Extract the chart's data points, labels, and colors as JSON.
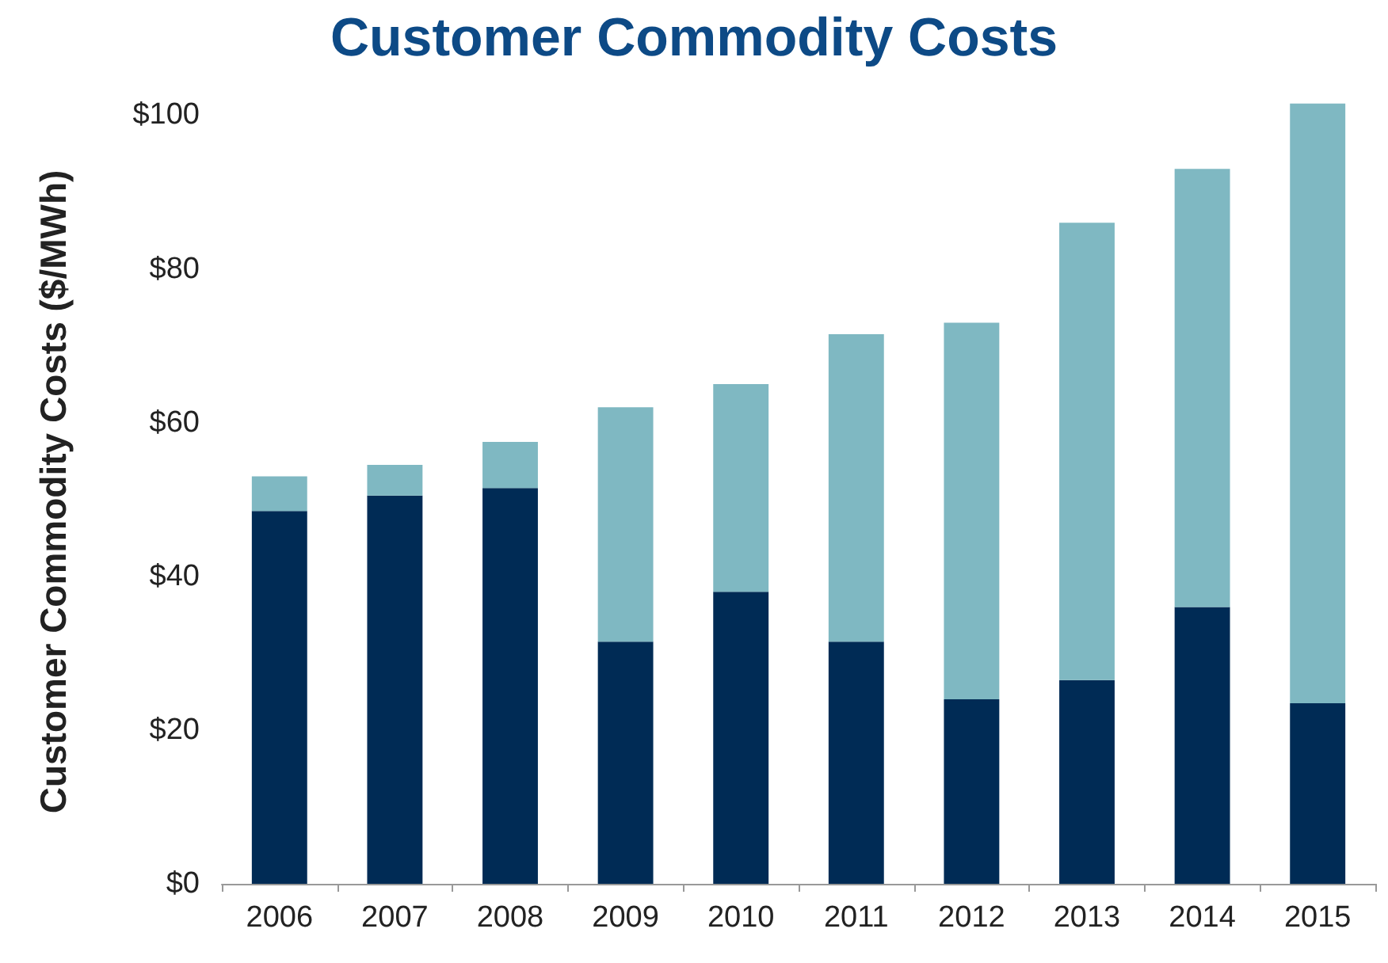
{
  "chart_data": {
    "type": "bar",
    "title": "Customer Commodity Costs",
    "ylabel": "Customer Commodity Costs ($/MWh)",
    "categories": [
      "2006",
      "2007",
      "2008",
      "2009",
      "2010",
      "2011",
      "2012",
      "2013",
      "2014",
      "2015"
    ],
    "stacked": true,
    "series": [
      {
        "color": "#002b55",
        "values": [
          48.5,
          50.5,
          51.5,
          31.5,
          38,
          31.5,
          24,
          26.5,
          36,
          23.5
        ]
      },
      {
        "color": "#7fb8c2",
        "values": [
          4.5,
          4,
          6,
          30.5,
          27,
          40,
          49,
          59.5,
          57,
          78
        ]
      }
    ],
    "ylim": [
      0,
      102
    ],
    "yticks": [
      {
        "value": 0,
        "label": "$0"
      },
      {
        "value": 20,
        "label": "$20"
      },
      {
        "value": 40,
        "label": "$40"
      },
      {
        "value": 60,
        "label": "$60"
      },
      {
        "value": 80,
        "label": "$80"
      },
      {
        "value": 100,
        "label": "$100"
      }
    ],
    "grid": false
  }
}
